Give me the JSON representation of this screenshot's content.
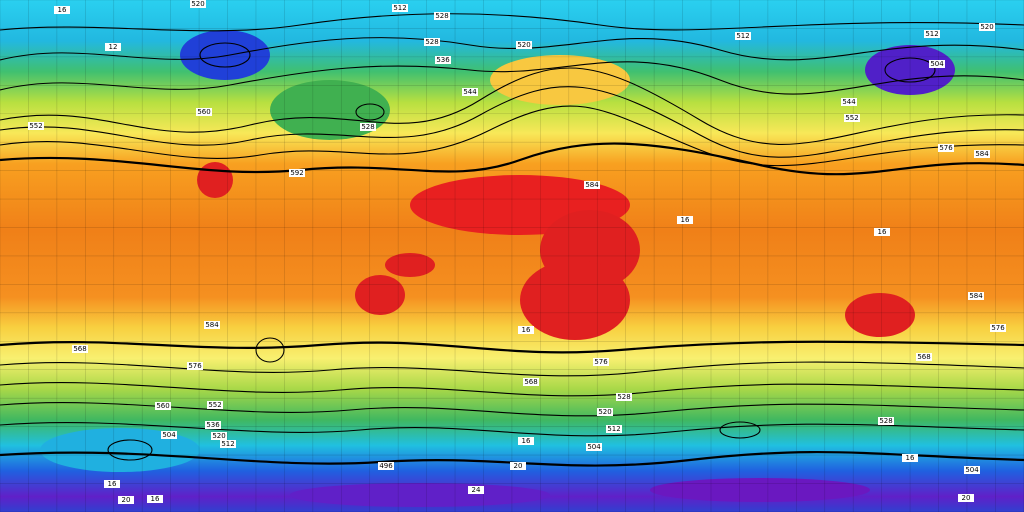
{
  "labels": [
    "520",
    "16",
    "512",
    "528",
    "520",
    "512",
    "12",
    "528",
    "536",
    "520",
    "512",
    "504",
    "544",
    "528",
    "552",
    "544",
    "552",
    "560",
    "576",
    "584",
    "592",
    "584",
    "16",
    "16",
    "584",
    "576",
    "584",
    "568",
    "576",
    "16",
    "576",
    "568",
    "560",
    "552",
    "536",
    "520",
    "512",
    "504",
    "520",
    "512",
    "504",
    "528",
    "496",
    "16",
    "16",
    "528",
    "568",
    "20",
    "24",
    "16",
    "20",
    "16",
    "20",
    "504"
  ]
}
